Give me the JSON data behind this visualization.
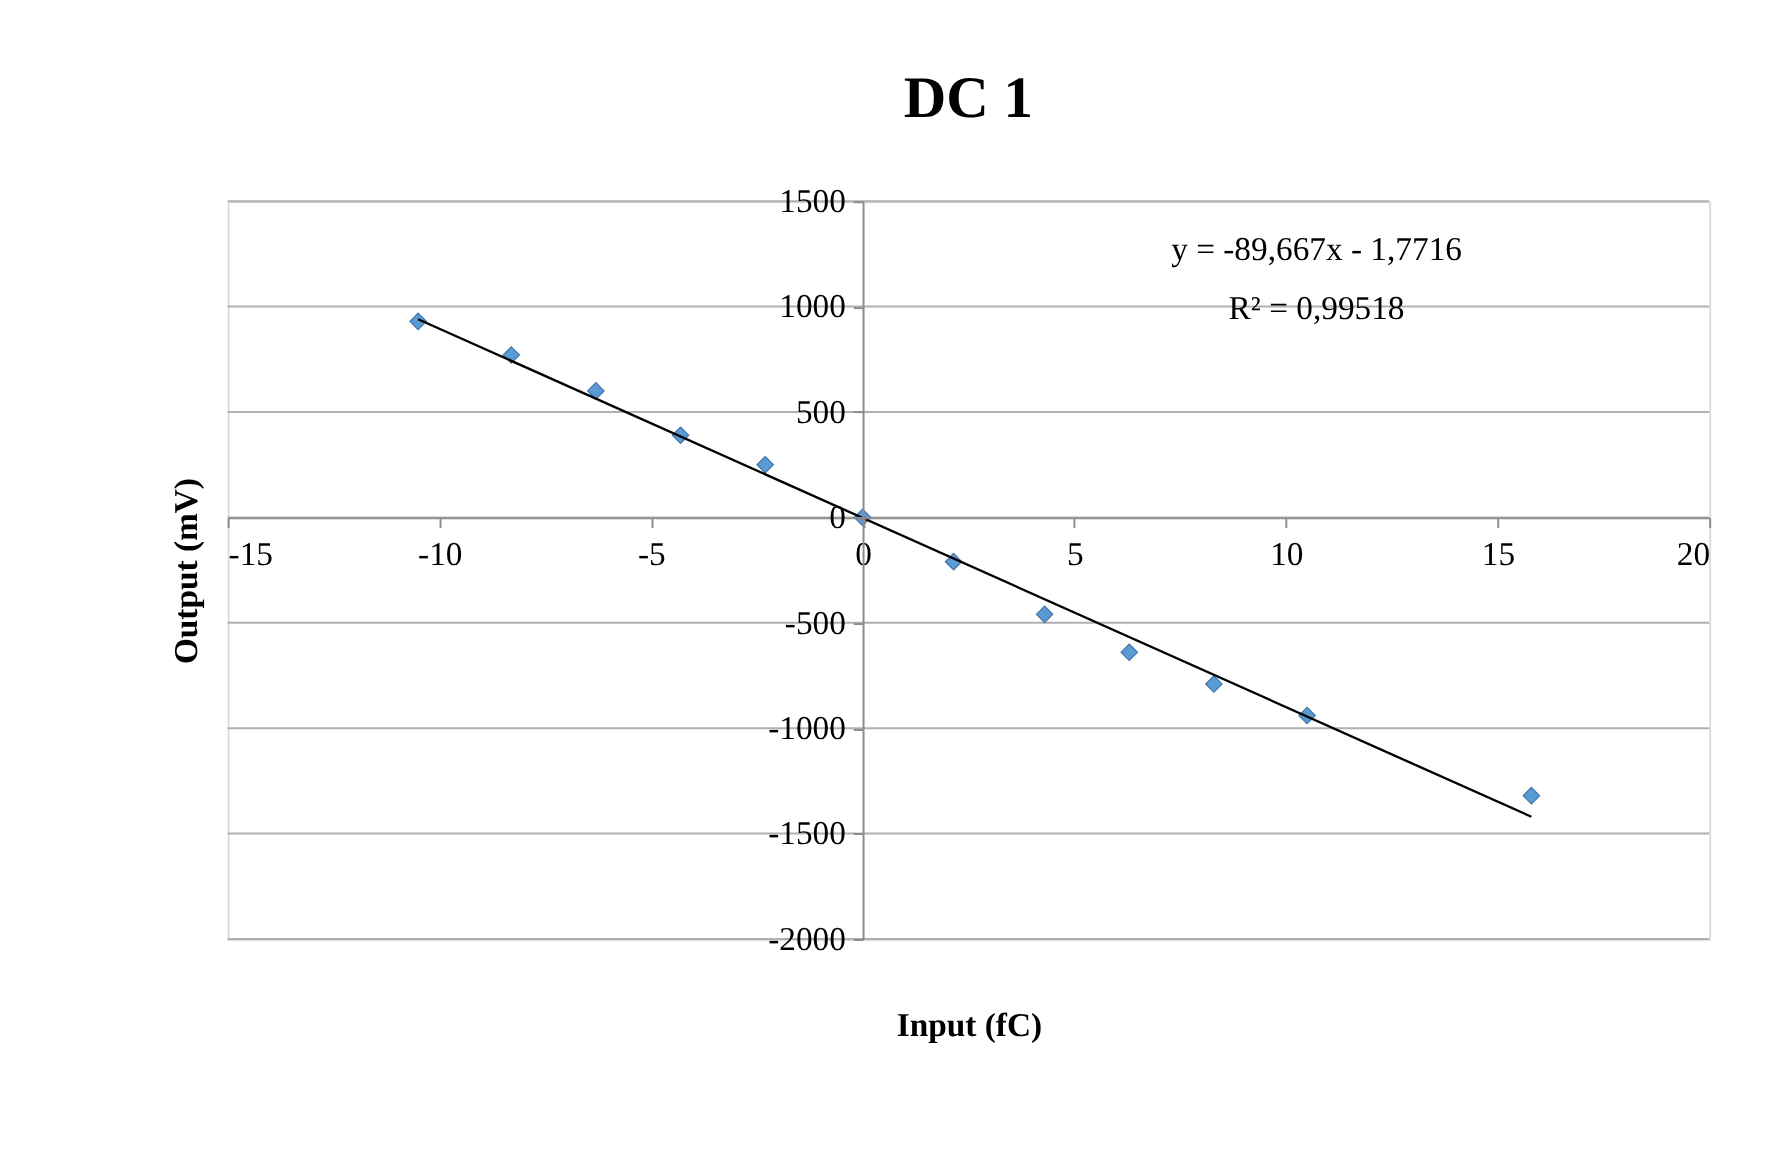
{
  "chart_data": {
    "type": "scatter",
    "title": "DC 1",
    "xlabel": "Input (fC)",
    "ylabel": "Output (mV)",
    "xlim": [
      -15,
      20
    ],
    "xticks": [
      -15,
      -10,
      -5,
      0,
      5,
      10,
      15,
      20
    ],
    "ylim": [
      -2000,
      1500
    ],
    "yticks": [
      -2000,
      -1500,
      -1000,
      -500,
      0,
      500,
      1000,
      1500
    ],
    "grid": "y",
    "marker": "diamond",
    "series": [
      {
        "color": "#5b9bd5",
        "x": [
          -10.5,
          -8.3,
          -6.3,
          -4.3,
          -2.3,
          0,
          2.15,
          4.3,
          6.3,
          8.3,
          10.5,
          15.8
        ],
        "values": [
          930,
          770,
          600,
          390,
          250,
          0,
          -210,
          -460,
          -640,
          -790,
          -940,
          -1320
        ]
      },
      {
        "type": "line",
        "color": "#000000",
        "line_style": "solid",
        "marker": "none",
        "x": [
          -10.5,
          15.8
        ],
        "values": [
          940,
          -1420
        ]
      }
    ],
    "annotations": [
      "y = -89,667x - 1,7716",
      "R² = 0,99518"
    ]
  }
}
